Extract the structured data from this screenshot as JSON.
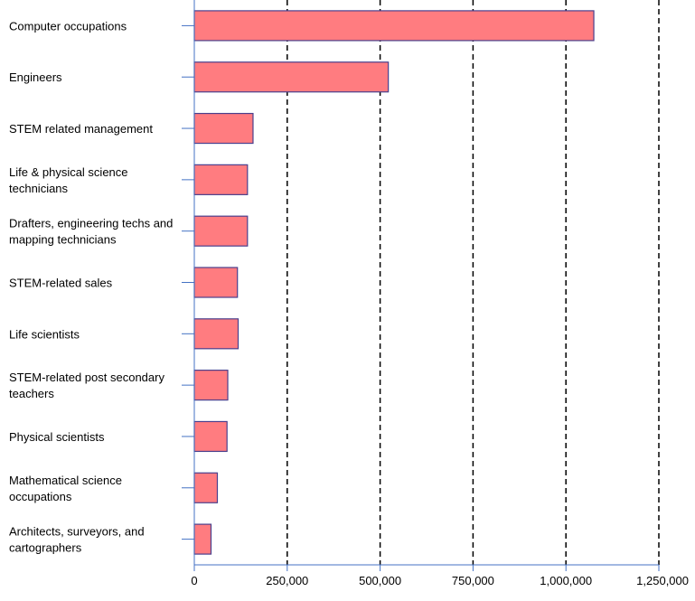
{
  "chart_data": {
    "type": "bar",
    "orientation": "horizontal",
    "title": "",
    "xlabel": "",
    "ylabel": "",
    "categories": [
      [
        "Computer occupations"
      ],
      [
        " Engineers"
      ],
      [
        "STEM related management"
      ],
      [
        "Life & physical science",
        "technicians"
      ],
      [
        "Drafters, engineering techs and",
        "mapping technicians"
      ],
      [
        "STEM-related sales"
      ],
      [
        "Life scientists"
      ],
      [
        "STEM-related post secondary",
        "teachers"
      ],
      [
        "Physical scientists"
      ],
      [
        "Mathematical science",
        "occupations"
      ],
      [
        "Architects, surveyors, and",
        "cartographers"
      ]
    ],
    "values": [
      1075000,
      522000,
      158000,
      143000,
      143000,
      116000,
      118000,
      90000,
      88000,
      62000,
      45000
    ],
    "xlim": [
      0,
      1250000
    ],
    "xticks": [
      0,
      250000,
      500000,
      750000,
      1000000,
      1250000
    ],
    "xtick_labels": [
      "0",
      "250,000",
      "500,000",
      "750,000",
      "1,000,000",
      "1,250,000"
    ],
    "grid": "vertical dashed",
    "legend": "none",
    "colors": {
      "bar_fill": "#ff7c80",
      "bar_stroke": "#4a3f8c",
      "axis": "#4472c4",
      "grid": "#000000",
      "text": "#000000"
    }
  }
}
